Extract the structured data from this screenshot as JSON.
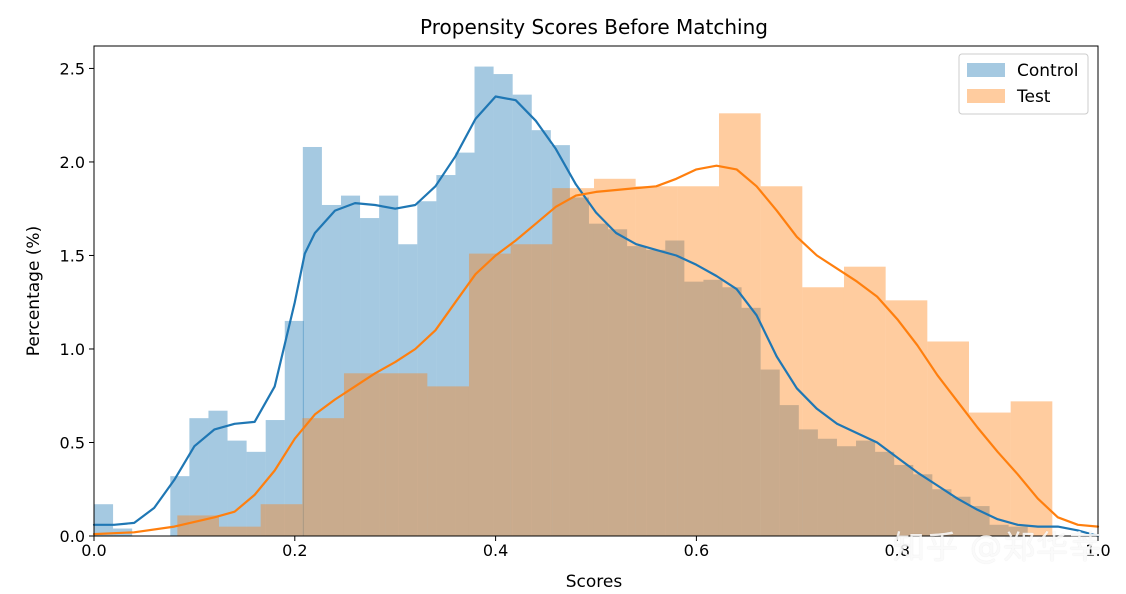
{
  "watermark": "知乎 @郑华莘",
  "chart_data": {
    "type": "histogram",
    "title": "Propensity Scores Before Matching",
    "xlabel": "Scores",
    "ylabel": "Percentage (%)",
    "xlim": [
      0.0,
      1.0
    ],
    "ylim": [
      0.0,
      2.62
    ],
    "xticks": [
      "0.0",
      "0.2",
      "0.4",
      "0.6",
      "0.8",
      "1.0"
    ],
    "yticks": [
      "0.0",
      "0.5",
      "1.0",
      "1.5",
      "2.0",
      "2.5"
    ],
    "legend_position": "top-right",
    "series": [
      {
        "name": "Control",
        "color": "#1f77b4",
        "bin_width": 0.019,
        "bins": [
          [
            0.0,
            0.17
          ],
          [
            0.019,
            0.04
          ],
          [
            0.038,
            0.0
          ],
          [
            0.057,
            0.0
          ],
          [
            0.076,
            0.32
          ],
          [
            0.095,
            0.63
          ],
          [
            0.114,
            0.67
          ],
          [
            0.133,
            0.51
          ],
          [
            0.152,
            0.45
          ],
          [
            0.171,
            0.62
          ],
          [
            0.19,
            1.15
          ],
          [
            0.208,
            2.08
          ],
          [
            0.227,
            1.77
          ],
          [
            0.246,
            1.82
          ],
          [
            0.265,
            1.7
          ],
          [
            0.284,
            1.82
          ],
          [
            0.303,
            1.56
          ],
          [
            0.322,
            1.79
          ],
          [
            0.341,
            1.93
          ],
          [
            0.36,
            2.05
          ],
          [
            0.379,
            2.51
          ],
          [
            0.398,
            2.47
          ],
          [
            0.417,
            2.36
          ],
          [
            0.436,
            2.17
          ],
          [
            0.455,
            2.09
          ],
          [
            0.474,
            1.81
          ],
          [
            0.493,
            1.67
          ],
          [
            0.512,
            1.64
          ],
          [
            0.531,
            1.55
          ],
          [
            0.55,
            1.53
          ],
          [
            0.569,
            1.58
          ],
          [
            0.588,
            1.36
          ],
          [
            0.607,
            1.37
          ],
          [
            0.626,
            1.33
          ],
          [
            0.645,
            1.22
          ],
          [
            0.664,
            0.89
          ],
          [
            0.683,
            0.7
          ],
          [
            0.702,
            0.57
          ],
          [
            0.721,
            0.52
          ],
          [
            0.74,
            0.48
          ],
          [
            0.759,
            0.51
          ],
          [
            0.778,
            0.45
          ],
          [
            0.797,
            0.38
          ],
          [
            0.816,
            0.33
          ],
          [
            0.835,
            0.25
          ],
          [
            0.854,
            0.21
          ],
          [
            0.873,
            0.16
          ],
          [
            0.892,
            0.06
          ],
          [
            0.911,
            0.05
          ]
        ],
        "kde": [
          [
            0.0,
            0.06
          ],
          [
            0.02,
            0.06
          ],
          [
            0.04,
            0.07
          ],
          [
            0.06,
            0.15
          ],
          [
            0.08,
            0.3
          ],
          [
            0.1,
            0.48
          ],
          [
            0.12,
            0.57
          ],
          [
            0.14,
            0.6
          ],
          [
            0.16,
            0.61
          ],
          [
            0.18,
            0.8
          ],
          [
            0.2,
            1.25
          ],
          [
            0.21,
            1.51
          ],
          [
            0.22,
            1.62
          ],
          [
            0.24,
            1.74
          ],
          [
            0.26,
            1.78
          ],
          [
            0.28,
            1.77
          ],
          [
            0.3,
            1.75
          ],
          [
            0.32,
            1.77
          ],
          [
            0.34,
            1.87
          ],
          [
            0.36,
            2.03
          ],
          [
            0.38,
            2.23
          ],
          [
            0.4,
            2.35
          ],
          [
            0.42,
            2.33
          ],
          [
            0.44,
            2.22
          ],
          [
            0.46,
            2.07
          ],
          [
            0.48,
            1.88
          ],
          [
            0.5,
            1.73
          ],
          [
            0.52,
            1.62
          ],
          [
            0.54,
            1.56
          ],
          [
            0.56,
            1.53
          ],
          [
            0.58,
            1.5
          ],
          [
            0.6,
            1.45
          ],
          [
            0.62,
            1.39
          ],
          [
            0.64,
            1.32
          ],
          [
            0.66,
            1.18
          ],
          [
            0.68,
            0.96
          ],
          [
            0.7,
            0.79
          ],
          [
            0.72,
            0.68
          ],
          [
            0.74,
            0.6
          ],
          [
            0.76,
            0.55
          ],
          [
            0.78,
            0.5
          ],
          [
            0.8,
            0.42
          ],
          [
            0.82,
            0.34
          ],
          [
            0.84,
            0.27
          ],
          [
            0.86,
            0.2
          ],
          [
            0.88,
            0.14
          ],
          [
            0.9,
            0.09
          ],
          [
            0.92,
            0.06
          ],
          [
            0.94,
            0.05
          ],
          [
            0.96,
            0.05
          ],
          [
            0.98,
            0.03
          ],
          [
            1.0,
            0.0
          ]
        ]
      },
      {
        "name": "Test",
        "color": "#ff7f0e",
        "bin_width": 0.0415,
        "bins": [
          [
            0.0,
            0.0
          ],
          [
            0.0415,
            0.0
          ],
          [
            0.083,
            0.11
          ],
          [
            0.1245,
            0.05
          ],
          [
            0.166,
            0.17
          ],
          [
            0.2075,
            0.63
          ],
          [
            0.249,
            0.87
          ],
          [
            0.2905,
            0.87
          ],
          [
            0.332,
            0.8
          ],
          [
            0.3735,
            1.51
          ],
          [
            0.415,
            1.56
          ],
          [
            0.4565,
            1.86
          ],
          [
            0.498,
            1.91
          ],
          [
            0.5395,
            1.87
          ],
          [
            0.581,
            1.87
          ],
          [
            0.6225,
            2.26
          ],
          [
            0.664,
            1.87
          ],
          [
            0.7055,
            1.33
          ],
          [
            0.747,
            1.44
          ],
          [
            0.7885,
            1.26
          ],
          [
            0.83,
            1.04
          ],
          [
            0.8715,
            0.66
          ],
          [
            0.913,
            0.72
          ]
        ],
        "kde": [
          [
            0.0,
            0.01
          ],
          [
            0.04,
            0.02
          ],
          [
            0.08,
            0.05
          ],
          [
            0.12,
            0.1
          ],
          [
            0.14,
            0.13
          ],
          [
            0.16,
            0.22
          ],
          [
            0.18,
            0.35
          ],
          [
            0.2,
            0.52
          ],
          [
            0.22,
            0.65
          ],
          [
            0.24,
            0.73
          ],
          [
            0.26,
            0.8
          ],
          [
            0.28,
            0.87
          ],
          [
            0.3,
            0.93
          ],
          [
            0.32,
            1.0
          ],
          [
            0.34,
            1.1
          ],
          [
            0.36,
            1.25
          ],
          [
            0.38,
            1.4
          ],
          [
            0.4,
            1.5
          ],
          [
            0.42,
            1.58
          ],
          [
            0.44,
            1.67
          ],
          [
            0.46,
            1.76
          ],
          [
            0.48,
            1.82
          ],
          [
            0.5,
            1.84
          ],
          [
            0.52,
            1.85
          ],
          [
            0.54,
            1.86
          ],
          [
            0.56,
            1.87
          ],
          [
            0.58,
            1.91
          ],
          [
            0.6,
            1.96
          ],
          [
            0.62,
            1.98
          ],
          [
            0.64,
            1.96
          ],
          [
            0.66,
            1.87
          ],
          [
            0.68,
            1.74
          ],
          [
            0.7,
            1.6
          ],
          [
            0.72,
            1.5
          ],
          [
            0.74,
            1.43
          ],
          [
            0.76,
            1.36
          ],
          [
            0.78,
            1.28
          ],
          [
            0.8,
            1.16
          ],
          [
            0.82,
            1.02
          ],
          [
            0.84,
            0.86
          ],
          [
            0.86,
            0.72
          ],
          [
            0.88,
            0.58
          ],
          [
            0.9,
            0.45
          ],
          [
            0.92,
            0.33
          ],
          [
            0.94,
            0.2
          ],
          [
            0.96,
            0.1
          ],
          [
            0.98,
            0.06
          ],
          [
            1.0,
            0.05
          ]
        ]
      }
    ]
  }
}
